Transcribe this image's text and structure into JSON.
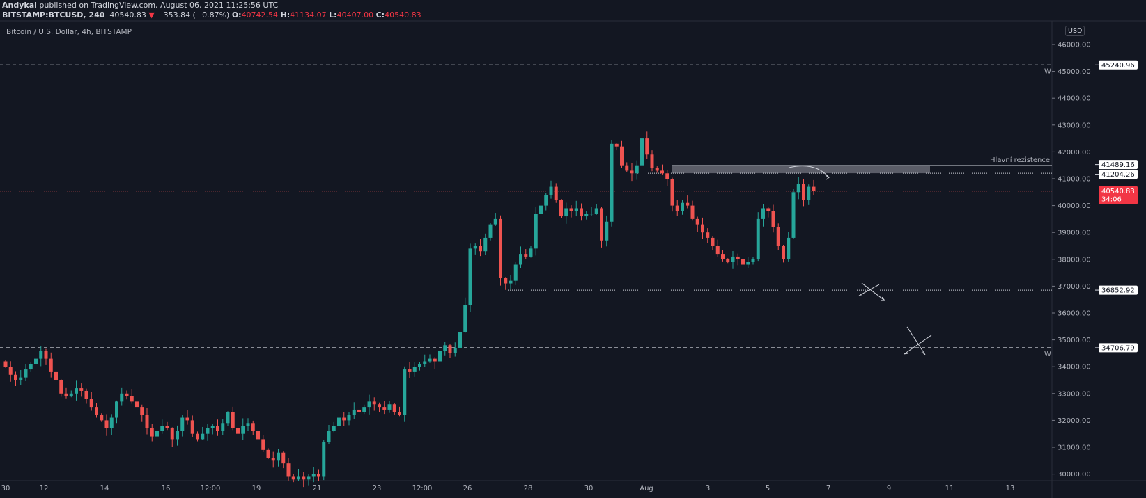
{
  "header": {
    "author": "Andykal",
    "published_text": "published on TradingView.com, August 06, 2021 11:25:56 UTC",
    "symbol": "BITSTAMP:BTCUSD, 240",
    "last": "40540.83",
    "change": "−353.84 (−0.87%)",
    "o_label": "O:",
    "o": "40742.54",
    "h_label": "H:",
    "h": "41134.07",
    "l_label": "L:",
    "l": "40407.00",
    "c_label": "C:",
    "c": "40540.83"
  },
  "legend": "Bitcoin / U.S. Dollar, 4h, BITSTAMP",
  "currency": "USD",
  "colors": {
    "up": "#26a69a",
    "down": "#ef5350",
    "bg": "#131722"
  },
  "price_axis": [
    "46000.00",
    "45000.00",
    "44000.00",
    "43000.00",
    "42000.00",
    "41000.00",
    "40000.00",
    "39000.00",
    "38000.00",
    "37000.00",
    "36000.00",
    "35000.00",
    "34000.00",
    "33000.00",
    "32000.00",
    "31000.00",
    "30000.00"
  ],
  "time_axis": [
    "30",
    "12",
    "14",
    "16",
    "12:00",
    "19",
    "21",
    "23",
    "12:00",
    "26",
    "28",
    "30",
    "Aug",
    "3",
    "5",
    "7",
    "9",
    "11",
    "13"
  ],
  "levels": [
    {
      "price": "45240.96",
      "style": "dashed",
      "mark": "W"
    },
    {
      "price": "41489.16",
      "style": "solid",
      "label": "Hlavní rezistence"
    },
    {
      "price": "41204.26",
      "style": "dotted"
    },
    {
      "price": "36852.92",
      "style": "dotted"
    },
    {
      "price": "34706.79",
      "style": "dashed",
      "mark": "W"
    }
  ],
  "current": {
    "price": "40540.83",
    "countdown": "34:06"
  },
  "closes": [
    34000,
    33700,
    33500,
    33600,
    33900,
    34100,
    34300,
    34600,
    34300,
    33800,
    33500,
    33000,
    32900,
    33000,
    33200,
    33100,
    32800,
    32500,
    32200,
    32000,
    31700,
    32100,
    32700,
    33000,
    32900,
    32700,
    32500,
    32200,
    31700,
    31400,
    31600,
    31800,
    31700,
    31300,
    31600,
    32100,
    32000,
    31500,
    31300,
    31500,
    31700,
    31800,
    31600,
    31900,
    32300,
    31700,
    31500,
    31800,
    31900,
    31600,
    31300,
    30900,
    30600,
    30500,
    30800,
    30400,
    29900,
    29800,
    29900,
    29800,
    29900,
    30000,
    29900,
    31200,
    31600,
    31800,
    32100,
    32000,
    32200,
    32400,
    32300,
    32500,
    32700,
    32600,
    32500,
    32400,
    32600,
    32300,
    32200,
    33900,
    33800,
    34000,
    34100,
    34200,
    34300,
    34200,
    34600,
    34800,
    34500,
    34700,
    35300,
    36300,
    38400,
    38500,
    38300,
    38800,
    39300,
    39500,
    37300,
    37100,
    37200,
    37800,
    38200,
    38100,
    38400,
    39700,
    40000,
    40400,
    40700,
    40200,
    39600,
    39900,
    39800,
    39900,
    39600,
    39700,
    39700,
    39900,
    38700,
    39400,
    42300,
    42200,
    41500,
    41300,
    41200,
    41500,
    42500,
    41900,
    41400,
    41300,
    41200,
    41000,
    40000,
    39800,
    40100,
    40000,
    39500,
    39300,
    39000,
    38800,
    38500,
    38200,
    38000,
    37900,
    38100,
    38000,
    37800,
    37900,
    38000,
    39500,
    39900,
    39800,
    39200,
    38500,
    38000,
    38800,
    40500,
    40800,
    40200,
    40700,
    40540
  ]
}
